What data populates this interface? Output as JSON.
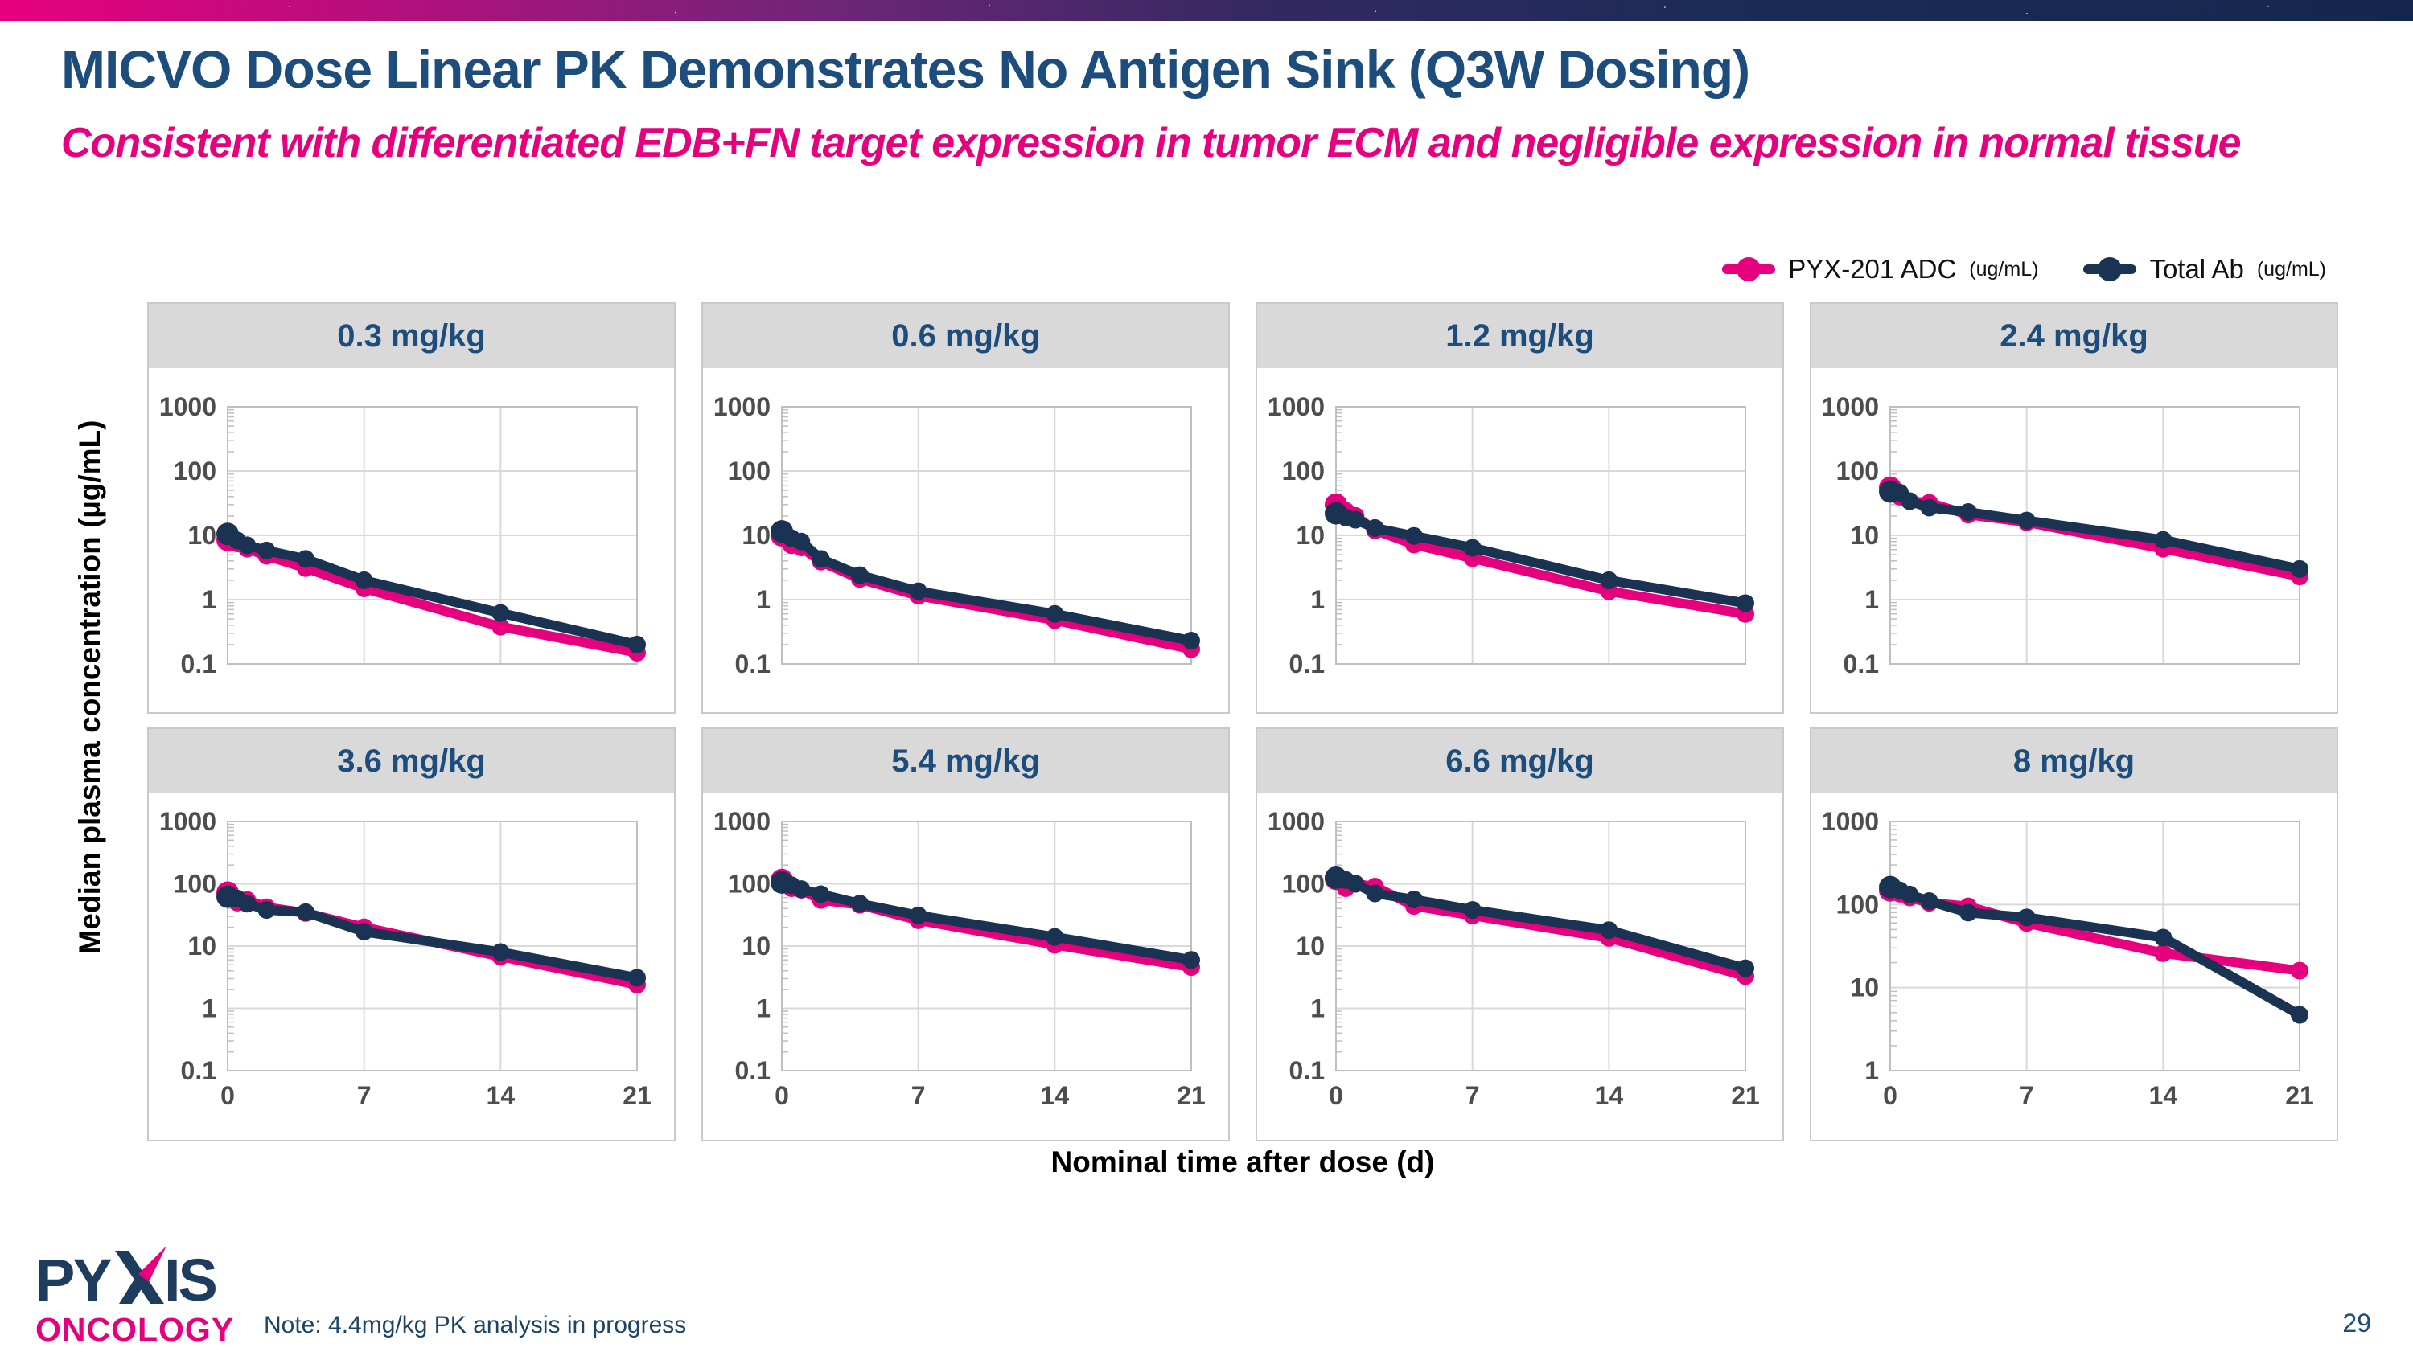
{
  "slide": {
    "title": "MICVO Dose Linear PK Demonstrates No Antigen Sink (Q3W Dosing)",
    "subtitle": "Consistent with differentiated EDB+FN target expression in tumor ECM and negligible expression in normal tissue",
    "y_axis_label": "Median plasma concentration (µg/mL)",
    "x_axis_label": "Nominal time after dose (d)",
    "note": "Note: 4.4mg/kg PK analysis in progress",
    "page_number": "29"
  },
  "logo": {
    "name": "PYXIS",
    "subname": "ONCOLOGY"
  },
  "legend": [
    {
      "label": "PYX-201 ADC",
      "units": "(ug/mL)",
      "color": "#e6007e"
    },
    {
      "label": "Total Ab",
      "units": "(ug/mL)",
      "color": "#1a3353"
    }
  ],
  "colors": {
    "accent_pink": "#e6007e",
    "navy_line": "#1a3353",
    "title_blue": "#1c4d7c",
    "header_gray": "#d9d9d9",
    "grid_gray": "#d9d9d9",
    "border_gray": "#bfbfbf",
    "tick_text": "#4d4d4d"
  },
  "chart_data": [
    {
      "type": "line",
      "title": "0.3 mg/kg",
      "x": [
        0,
        0.5,
        1,
        2,
        4,
        7,
        14,
        21
      ],
      "x_ticks": [
        0,
        7,
        14,
        21
      ],
      "xlim": [
        0,
        21
      ],
      "ylim": [
        0.1,
        1000
      ],
      "y_ticks": [
        "1000",
        "100",
        "10",
        "1",
        "0.1"
      ],
      "show_x_tick_labels": false,
      "series": [
        {
          "name": "PYX-201 ADC",
          "color": "#e6007e",
          "values": [
            8.5,
            7.5,
            6.2,
            4.8,
            3.1,
            1.5,
            0.38,
            0.15
          ]
        },
        {
          "name": "Total Ab",
          "color": "#1a3353",
          "values": [
            10.5,
            8.3,
            7.0,
            5.8,
            4.3,
            2.0,
            0.62,
            0.2
          ]
        }
      ]
    },
    {
      "type": "line",
      "title": "0.6 mg/kg",
      "x": [
        0,
        0.5,
        1,
        2,
        4,
        7,
        14,
        21
      ],
      "x_ticks": [
        0,
        7,
        14,
        21
      ],
      "xlim": [
        0,
        21
      ],
      "ylim": [
        0.1,
        1000
      ],
      "y_ticks": [
        "1000",
        "100",
        "10",
        "1",
        "0.1"
      ],
      "show_x_tick_labels": false,
      "series": [
        {
          "name": "PYX-201 ADC",
          "color": "#e6007e",
          "values": [
            10,
            7.0,
            6.5,
            3.9,
            2.1,
            1.15,
            0.48,
            0.17
          ]
        },
        {
          "name": "Total Ab",
          "color": "#1a3353",
          "values": [
            11.5,
            9.0,
            8.0,
            4.3,
            2.4,
            1.35,
            0.6,
            0.23
          ]
        }
      ]
    },
    {
      "type": "line",
      "title": "1.2 mg/kg",
      "x": [
        0,
        0.5,
        1,
        2,
        4,
        7,
        14,
        21
      ],
      "x_ticks": [
        0,
        7,
        14,
        21
      ],
      "xlim": [
        0,
        21
      ],
      "ylim": [
        0.1,
        1000
      ],
      "y_ticks": [
        "1000",
        "100",
        "10",
        "1",
        "0.1"
      ],
      "show_x_tick_labels": false,
      "series": [
        {
          "name": "PYX-201 ADC",
          "color": "#e6007e",
          "values": [
            30,
            24,
            20,
            12,
            7.2,
            4.4,
            1.35,
            0.6
          ]
        },
        {
          "name": "Total Ab",
          "color": "#1a3353",
          "values": [
            22,
            19,
            17.5,
            13,
            9.8,
            6.4,
            2.0,
            0.88
          ]
        }
      ]
    },
    {
      "type": "line",
      "title": "2.4 mg/kg",
      "x": [
        0,
        0.5,
        1,
        2,
        4,
        7,
        14,
        21
      ],
      "x_ticks": [
        0,
        7,
        14,
        21
      ],
      "xlim": [
        0,
        21
      ],
      "ylim": [
        0.1,
        1000
      ],
      "y_ticks": [
        "1000",
        "100",
        "10",
        "1",
        "0.1"
      ],
      "show_x_tick_labels": false,
      "series": [
        {
          "name": "PYX-201 ADC",
          "color": "#e6007e",
          "values": [
            55,
            40,
            34,
            32,
            21,
            16,
            6.2,
            2.3
          ]
        },
        {
          "name": "Total Ab",
          "color": "#1a3353",
          "values": [
            48,
            46,
            34,
            27,
            23,
            17,
            8.5,
            3.0
          ]
        }
      ]
    },
    {
      "type": "line",
      "title": "3.6 mg/kg",
      "x": [
        0,
        0.5,
        1,
        2,
        4,
        7,
        14,
        21
      ],
      "x_ticks": [
        0,
        7,
        14,
        21
      ],
      "xlim": [
        0,
        21
      ],
      "ylim": [
        0.1,
        1000
      ],
      "y_ticks": [
        "1000",
        "100",
        "10",
        "1",
        "0.1"
      ],
      "show_x_tick_labels": true,
      "series": [
        {
          "name": "PYX-201 ADC",
          "color": "#e6007e",
          "values": [
            72,
            50,
            55,
            42,
            34,
            20,
            6.8,
            2.4
          ]
        },
        {
          "name": "Total Ab",
          "color": "#1a3353",
          "values": [
            62,
            58,
            48,
            38,
            35,
            17,
            8.0,
            3.1
          ]
        }
      ]
    },
    {
      "type": "line",
      "title": "5.4 mg/kg",
      "x": [
        0,
        0.5,
        1,
        2,
        4,
        7,
        14,
        21
      ],
      "x_ticks": [
        0,
        7,
        14,
        21
      ],
      "xlim": [
        0,
        21
      ],
      "ylim": [
        0.1,
        1000
      ],
      "y_ticks": [
        "1000",
        "100",
        "10",
        "1",
        "0.1"
      ],
      "show_x_tick_labels": true,
      "series": [
        {
          "name": "PYX-201 ADC",
          "color": "#e6007e",
          "values": [
            115,
            85,
            80,
            55,
            46,
            26,
            10.5,
            4.6
          ]
        },
        {
          "name": "Total Ab",
          "color": "#1a3353",
          "values": [
            105,
            95,
            82,
            68,
            48,
            31,
            14,
            6.0
          ]
        }
      ]
    },
    {
      "type": "line",
      "title": "6.6 mg/kg",
      "x": [
        0,
        0.5,
        1,
        2,
        4,
        7,
        14,
        21
      ],
      "x_ticks": [
        0,
        7,
        14,
        21
      ],
      "xlim": [
        0,
        21
      ],
      "ylim": [
        0.1,
        1000
      ],
      "y_ticks": [
        "1000",
        "100",
        "10",
        "1",
        "0.1"
      ],
      "show_x_tick_labels": true,
      "series": [
        {
          "name": "PYX-201 ADC",
          "color": "#e6007e",
          "values": [
            120,
            85,
            100,
            90,
            44,
            31,
            13.5,
            3.3
          ]
        },
        {
          "name": "Total Ab",
          "color": "#1a3353",
          "values": [
            125,
            115,
            100,
            70,
            56,
            38,
            18,
            4.4
          ]
        }
      ]
    },
    {
      "type": "line",
      "title": "8 mg/kg",
      "x": [
        0,
        0.5,
        1,
        2,
        4,
        7,
        14,
        21
      ],
      "x_ticks": [
        0,
        7,
        14,
        21
      ],
      "xlim": [
        0,
        21
      ],
      "ylim": [
        1,
        1000
      ],
      "y_ticks": [
        "1000",
        "100",
        "10",
        "1"
      ],
      "show_x_tick_labels": true,
      "series": [
        {
          "name": "PYX-201 ADC",
          "color": "#e6007e",
          "values": [
            148,
            135,
            122,
            105,
            95,
            60,
            26,
            16
          ]
        },
        {
          "name": "Total Ab",
          "color": "#1a3353",
          "values": [
            162,
            148,
            132,
            110,
            80,
            70,
            40,
            4.7
          ]
        }
      ]
    }
  ]
}
